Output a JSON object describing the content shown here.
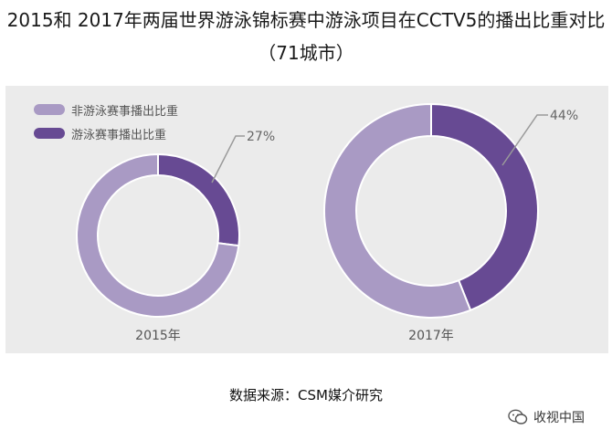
{
  "title": {
    "line1": "2015和 2017年两届世界游泳锦标赛中游泳项目在CCTV5的播出比重对比",
    "line2": "（71城市）"
  },
  "source": "数据来源：CSM媒介研究",
  "watermark": "收视中国",
  "colors": {
    "non_swim": "#a99ac4",
    "swim": "#674a93",
    "panel_bg": "#ebebeb",
    "leader": "#9a9a9a"
  },
  "chart_data": {
    "type": "pie",
    "legend": {
      "position": "top-left",
      "entries": [
        "非游泳赛事播出比重",
        "游泳赛事播出比重"
      ]
    },
    "charts": [
      {
        "name": "2015年",
        "slices": [
          {
            "label": "非游泳赛事播出比重",
            "value": 73
          },
          {
            "label": "游泳赛事播出比重",
            "value": 27,
            "display": "27%"
          }
        ]
      },
      {
        "name": "2017年",
        "slices": [
          {
            "label": "非游泳赛事播出比重",
            "value": 56
          },
          {
            "label": "游泳赛事播出比重",
            "value": 44,
            "display": "44%"
          }
        ]
      }
    ]
  }
}
